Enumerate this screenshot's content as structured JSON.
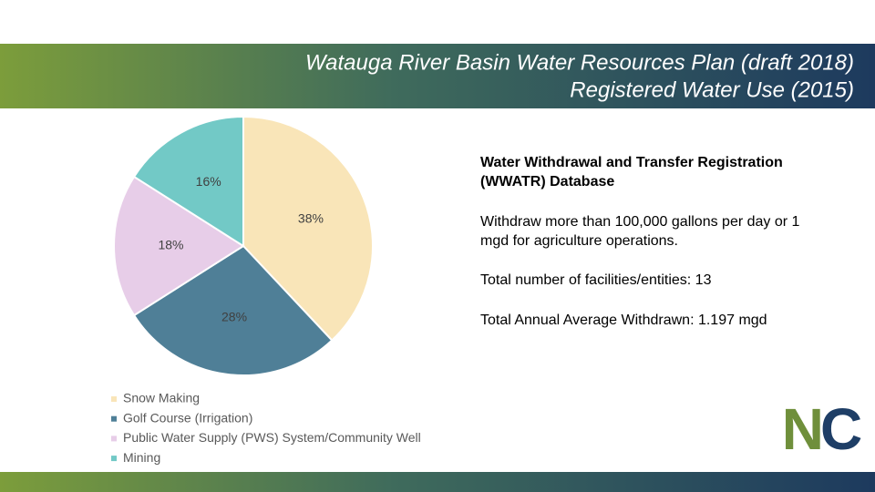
{
  "header": {
    "title_lines": [
      "Watauga River Basin Water Resources Plan (draft 2018)",
      "Registered Water Use (2015)"
    ]
  },
  "chart_data": {
    "type": "pie",
    "categories": [
      "Snow Making",
      "Golf Course (Irrigation)",
      "Public Water Supply (PWS) System/Community Well",
      "Mining"
    ],
    "values": [
      38,
      28,
      18,
      16
    ],
    "value_labels": [
      "38%",
      "28%",
      "18%",
      "16%"
    ],
    "colors": [
      "#f9e5b8",
      "#4f7f97",
      "#e7cde8",
      "#72c9c6"
    ],
    "legend": "bottom-left"
  },
  "notes": [
    "Water Withdrawal and Transfer Registration (WWATR) Database",
    "Withdraw more than 100,000 gallons per day or 1 mgd for agriculture operations.",
    "Total number of facilities/entities: 13",
    "Total Annual Average Withdrawn: 1.197 mgd"
  ],
  "logo": "NC"
}
